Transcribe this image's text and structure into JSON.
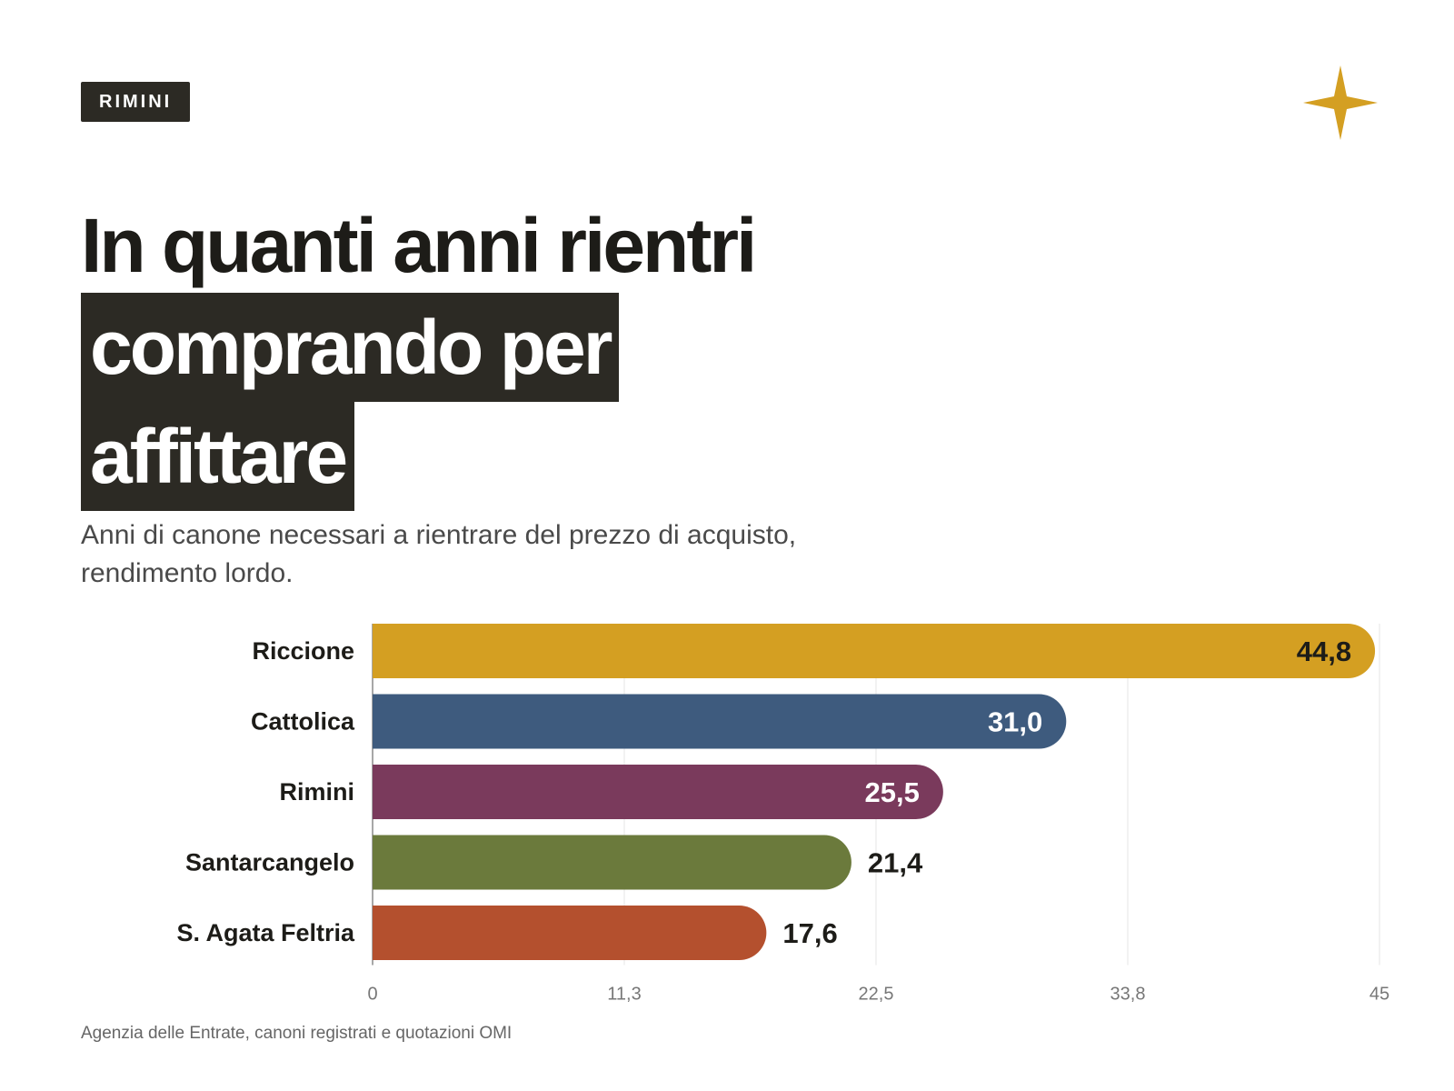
{
  "tag": "RIMINI",
  "headline": {
    "line1": "In quanti anni rientri",
    "line2": "comprando per",
    "line3": "affittare"
  },
  "subtitle_lines": [
    "Anni di canone necessari a rientrare del prezzo di acquisto,",
    "rendimento lordo."
  ],
  "source": "Agenzia delle Entrate, canoni registrati e quotazioni OMI",
  "colors": {
    "accent": "#d49f22",
    "dark": "#2c2a24"
  },
  "logo": {
    "icon": "four-point-star-icon"
  },
  "chart_data": {
    "type": "bar",
    "orientation": "horizontal",
    "categories": [
      "Riccione",
      "Cattolica",
      "Rimini",
      "Santarcangelo",
      "S. Agata Feltria"
    ],
    "values": [
      44.8,
      31.0,
      25.5,
      21.4,
      17.6
    ],
    "value_labels": [
      "44,8",
      "31,0",
      "25,5",
      "21,4",
      "17,6"
    ],
    "bar_colors": [
      "#d49f22",
      "#3e5b7e",
      "#7a3a5c",
      "#6b7a3c",
      "#b4502e"
    ],
    "xlim": [
      0,
      45
    ],
    "xticks": [
      0,
      11.25,
      22.5,
      33.75,
      45
    ],
    "xtick_labels": [
      "0",
      "11,3",
      "22,5",
      "33,8",
      "45"
    ],
    "grid": true,
    "legend": "none"
  }
}
